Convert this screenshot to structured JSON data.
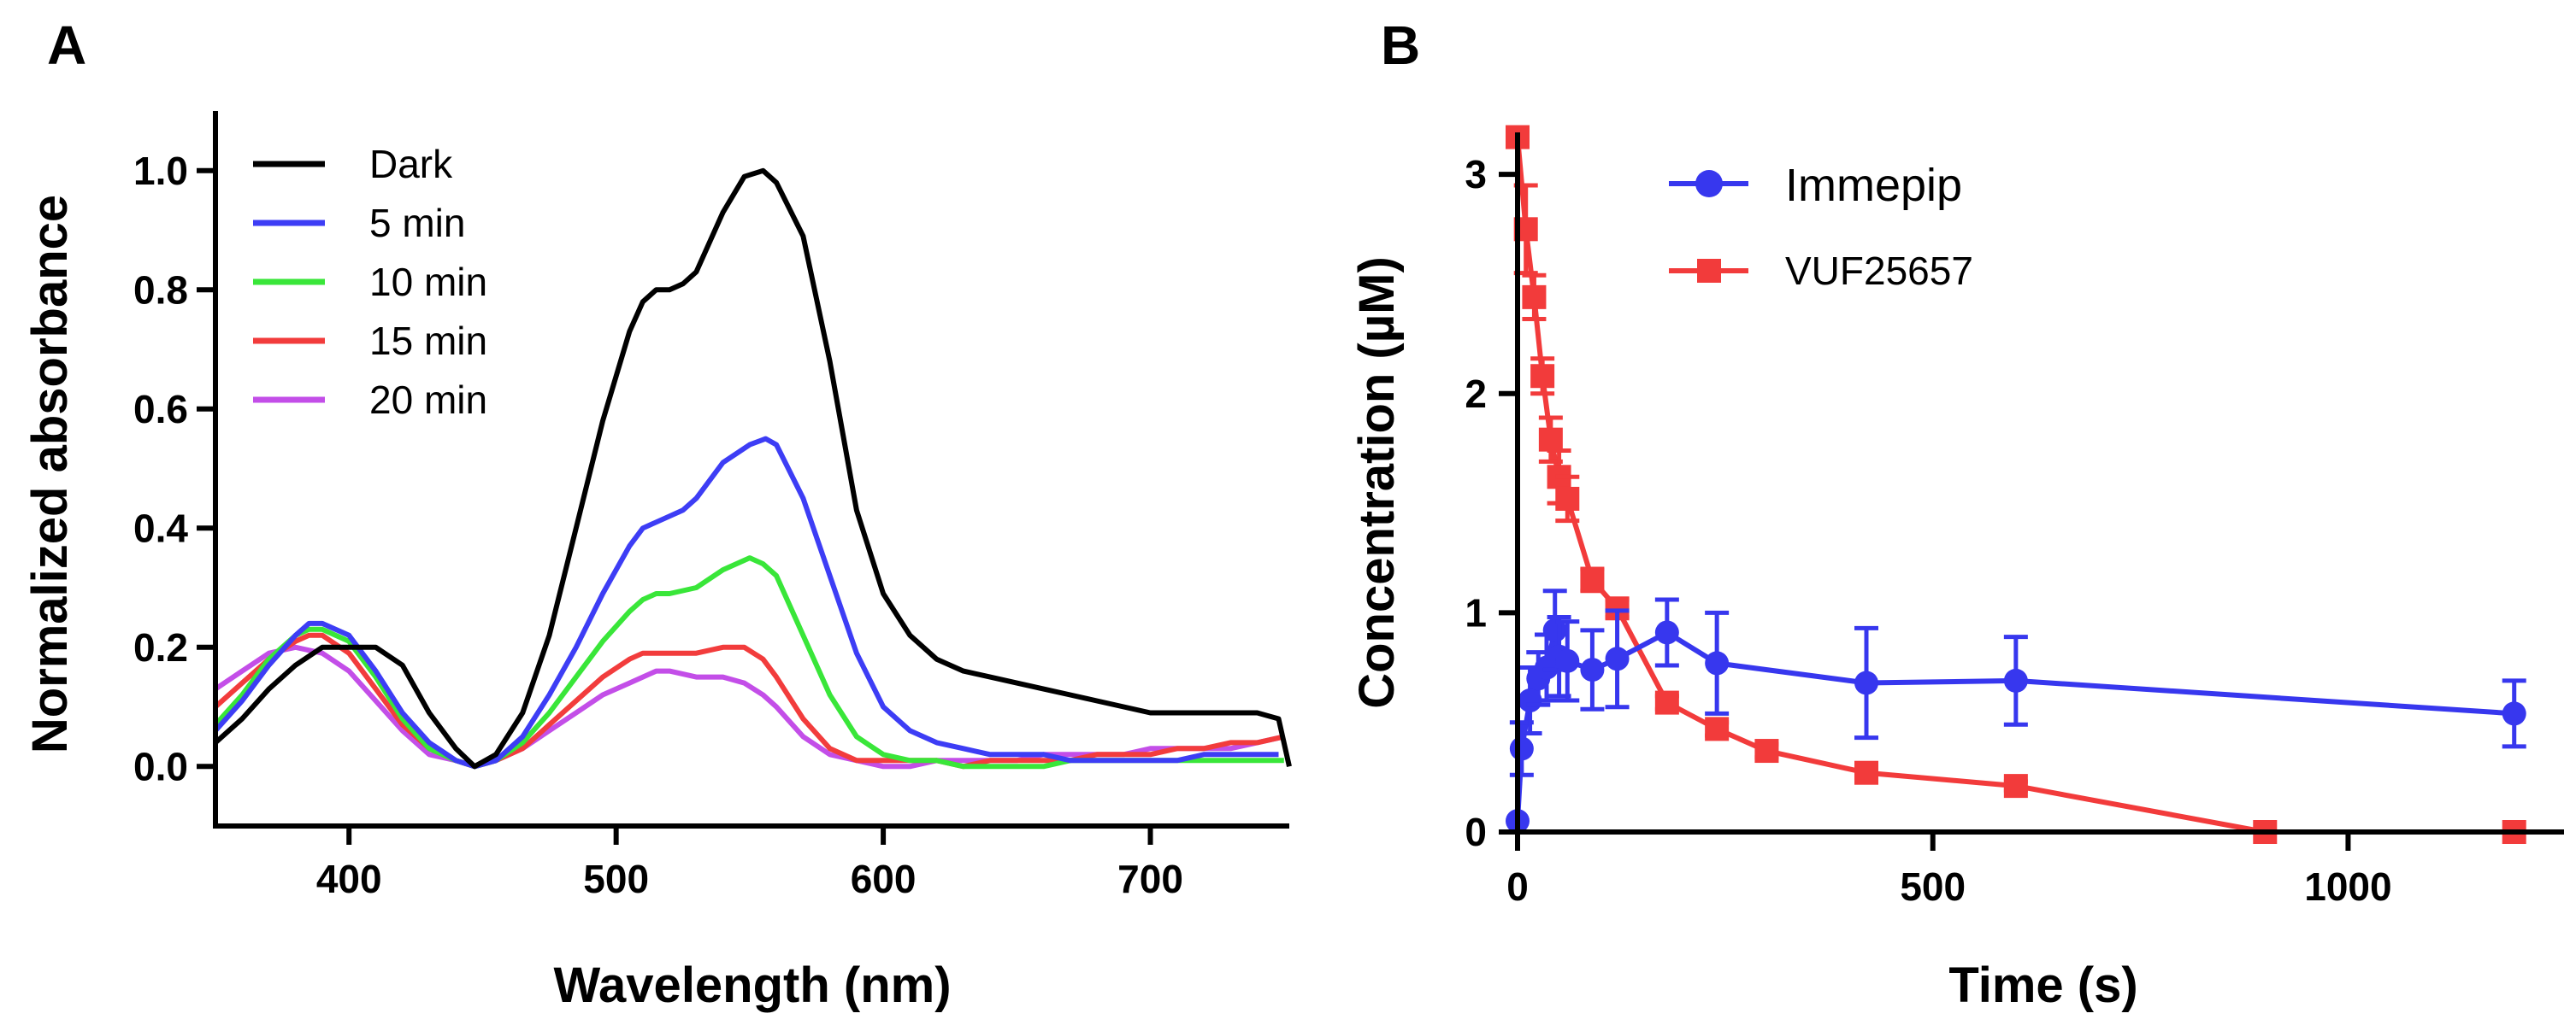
{
  "chart_data": [
    {
      "panel": "A",
      "type": "line",
      "title": "",
      "xlabel": "Wavelength (nm)",
      "ylabel": "Normalized absorbance",
      "xlim": [
        350,
        752
      ],
      "ylim": [
        -0.1,
        1.1
      ],
      "xticks": [
        "400",
        "500",
        "600",
        "700"
      ],
      "yticks": [
        "0.0",
        "0.2",
        "0.4",
        "0.6",
        "0.8",
        "1.0"
      ],
      "xtick_values": [
        400,
        500,
        600,
        700
      ],
      "ytick_values": [
        0.0,
        0.2,
        0.4,
        0.6,
        0.8,
        1.0
      ],
      "legend_position": "top-left",
      "series": [
        {
          "name": "Dark",
          "color": "#000000",
          "x": [
            350,
            360,
            370,
            380,
            390,
            395,
            400,
            410,
            420,
            430,
            440,
            447,
            455,
            465,
            475,
            485,
            495,
            505,
            510,
            515,
            520,
            525,
            530,
            540,
            548,
            555,
            560,
            570,
            580,
            590,
            600,
            610,
            620,
            630,
            640,
            650,
            660,
            670,
            680,
            690,
            700,
            710,
            720,
            730,
            740,
            748,
            752
          ],
          "y": [
            0.04,
            0.08,
            0.13,
            0.17,
            0.2,
            0.2,
            0.2,
            0.2,
            0.17,
            0.09,
            0.03,
            0.0,
            0.02,
            0.09,
            0.22,
            0.4,
            0.58,
            0.73,
            0.78,
            0.8,
            0.8,
            0.81,
            0.83,
            0.93,
            0.99,
            1.0,
            0.98,
            0.89,
            0.68,
            0.43,
            0.29,
            0.22,
            0.18,
            0.16,
            0.15,
            0.14,
            0.13,
            0.12,
            0.11,
            0.1,
            0.09,
            0.09,
            0.09,
            0.09,
            0.09,
            0.08,
            0.0
          ]
        },
        {
          "name": "5 min",
          "color": "#3d3df5",
          "x": [
            350,
            360,
            370,
            380,
            385,
            390,
            400,
            410,
            420,
            430,
            440,
            447,
            455,
            465,
            475,
            485,
            495,
            505,
            510,
            515,
            520,
            525,
            530,
            540,
            550,
            556,
            560,
            570,
            580,
            590,
            600,
            610,
            620,
            630,
            640,
            650,
            660,
            670,
            680,
            690,
            700,
            710,
            720,
            730,
            740,
            748
          ],
          "y": [
            0.06,
            0.11,
            0.17,
            0.22,
            0.24,
            0.24,
            0.22,
            0.16,
            0.09,
            0.04,
            0.01,
            0.0,
            0.01,
            0.05,
            0.12,
            0.2,
            0.29,
            0.37,
            0.4,
            0.41,
            0.42,
            0.43,
            0.45,
            0.51,
            0.54,
            0.55,
            0.54,
            0.45,
            0.32,
            0.19,
            0.1,
            0.06,
            0.04,
            0.03,
            0.02,
            0.02,
            0.02,
            0.01,
            0.01,
            0.01,
            0.01,
            0.01,
            0.02,
            0.02,
            0.02,
            0.02
          ]
        },
        {
          "name": "10 min",
          "color": "#39e639",
          "x": [
            350,
            360,
            370,
            380,
            385,
            390,
            400,
            410,
            420,
            430,
            440,
            447,
            455,
            465,
            475,
            485,
            495,
            505,
            510,
            515,
            520,
            530,
            540,
            550,
            555,
            560,
            570,
            580,
            590,
            600,
            610,
            620,
            630,
            640,
            650,
            660,
            670,
            680,
            690,
            700,
            710,
            720,
            730,
            740,
            750
          ],
          "y": [
            0.07,
            0.12,
            0.18,
            0.22,
            0.23,
            0.23,
            0.21,
            0.15,
            0.08,
            0.03,
            0.01,
            0.0,
            0.01,
            0.04,
            0.09,
            0.15,
            0.21,
            0.26,
            0.28,
            0.29,
            0.29,
            0.3,
            0.33,
            0.35,
            0.34,
            0.32,
            0.22,
            0.12,
            0.05,
            0.02,
            0.01,
            0.01,
            0.0,
            0.0,
            0.0,
            0.0,
            0.01,
            0.01,
            0.01,
            0.01,
            0.01,
            0.01,
            0.01,
            0.01,
            0.01
          ]
        },
        {
          "name": "15 min",
          "color": "#f23c3c",
          "x": [
            350,
            360,
            370,
            380,
            385,
            390,
            400,
            410,
            420,
            430,
            440,
            447,
            455,
            465,
            475,
            485,
            495,
            505,
            510,
            515,
            520,
            530,
            540,
            548,
            555,
            560,
            570,
            580,
            590,
            600,
            610,
            620,
            630,
            640,
            650,
            660,
            670,
            680,
            690,
            700,
            710,
            720,
            730,
            740,
            750
          ],
          "y": [
            0.1,
            0.14,
            0.18,
            0.21,
            0.22,
            0.22,
            0.19,
            0.13,
            0.07,
            0.03,
            0.01,
            0.0,
            0.01,
            0.03,
            0.07,
            0.11,
            0.15,
            0.18,
            0.19,
            0.19,
            0.19,
            0.19,
            0.2,
            0.2,
            0.18,
            0.15,
            0.08,
            0.03,
            0.01,
            0.01,
            0.01,
            0.01,
            0.0,
            0.01,
            0.01,
            0.01,
            0.01,
            0.02,
            0.02,
            0.02,
            0.03,
            0.03,
            0.04,
            0.04,
            0.05
          ]
        },
        {
          "name": "20 min",
          "color": "#c34ee8",
          "x": [
            350,
            360,
            370,
            380,
            390,
            400,
            410,
            420,
            430,
            440,
            447,
            455,
            465,
            475,
            485,
            495,
            505,
            510,
            515,
            520,
            530,
            540,
            548,
            555,
            560,
            570,
            580,
            590,
            600,
            610,
            620,
            630,
            640,
            650,
            660,
            670,
            680,
            690,
            700,
            710,
            720,
            730,
            740,
            750
          ],
          "y": [
            0.13,
            0.16,
            0.19,
            0.2,
            0.19,
            0.16,
            0.11,
            0.06,
            0.02,
            0.01,
            0.0,
            0.01,
            0.03,
            0.06,
            0.09,
            0.12,
            0.14,
            0.15,
            0.16,
            0.16,
            0.15,
            0.15,
            0.14,
            0.12,
            0.1,
            0.05,
            0.02,
            0.01,
            0.0,
            0.0,
            0.01,
            0.01,
            0.01,
            0.01,
            0.02,
            0.02,
            0.02,
            0.02,
            0.03,
            0.03,
            0.03,
            0.03,
            0.04,
            0.05
          ]
        }
      ]
    },
    {
      "panel": "B",
      "type": "line",
      "title": "",
      "xlabel": "Time (s)",
      "ylabel": "Concentration (µM)",
      "xlim": [
        0,
        1260
      ],
      "ylim": [
        0,
        3.25
      ],
      "xticks": [
        "0",
        "500",
        "1000"
      ],
      "yticks": [
        "0",
        "1",
        "2",
        "3"
      ],
      "xtick_values": [
        0,
        500,
        1000
      ],
      "ytick_values": [
        0,
        1,
        2,
        3
      ],
      "legend_position": "top-center",
      "series": [
        {
          "name": "Immepip",
          "color": "#3737ee",
          "marker": "circle",
          "x": [
            0,
            5,
            15,
            25,
            35,
            45,
            50,
            60,
            90,
            120,
            180,
            240,
            420,
            600,
            1200
          ],
          "y": [
            0.05,
            0.38,
            0.6,
            0.7,
            0.75,
            0.92,
            0.8,
            0.78,
            0.74,
            0.79,
            0.91,
            0.77,
            0.68,
            0.69,
            0.54
          ],
          "err": [
            0.0,
            0.12,
            0.15,
            0.12,
            0.15,
            0.18,
            0.18,
            0.18,
            0.18,
            0.22,
            0.15,
            0.23,
            0.25,
            0.2,
            0.15
          ]
        },
        {
          "name": "VUF25657",
          "color": "#f23b3b",
          "marker": "square",
          "x": [
            0,
            10,
            20,
            30,
            40,
            50,
            60,
            90,
            120,
            180,
            240,
            300,
            420,
            600,
            900,
            1200
          ],
          "y": [
            3.17,
            2.75,
            2.44,
            2.08,
            1.79,
            1.62,
            1.52,
            1.15,
            1.02,
            0.59,
            0.47,
            0.37,
            0.27,
            0.21,
            0.0,
            0.0
          ],
          "err": [
            0.0,
            0.2,
            0.1,
            0.08,
            0.1,
            0.12,
            0.1,
            0.05,
            0.04,
            0.03,
            0.03,
            0.03,
            0.02,
            0.02,
            0.0,
            0.0
          ]
        }
      ]
    }
  ]
}
